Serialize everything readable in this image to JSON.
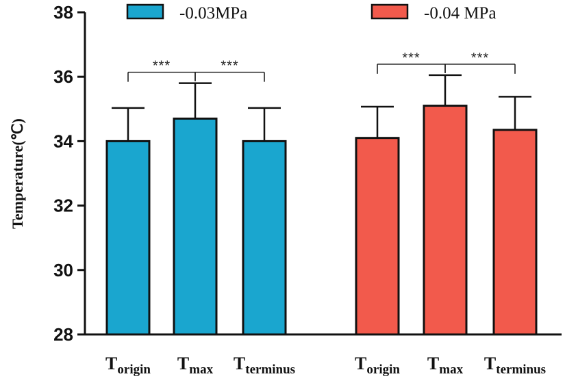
{
  "chart_data": {
    "type": "bar",
    "title": "",
    "xlabel": "",
    "ylabel": "Temperature(℃)",
    "ylim": [
      28,
      38
    ],
    "yticks": [
      "28",
      "30",
      "32",
      "34",
      "36",
      "38"
    ],
    "legend_position": "top",
    "categories": [
      {
        "main": "T",
        "sub": "origin"
      },
      {
        "main": "T",
        "sub": "max"
      },
      {
        "main": "T",
        "sub": "terminus"
      }
    ],
    "series": [
      {
        "name": "-0.03MPa",
        "color": "#1aa6cf",
        "values": [
          34.0,
          34.7,
          34.0
        ],
        "errors": [
          1.03,
          1.1,
          1.03
        ],
        "significance": [
          {
            "from": 0,
            "to": 1,
            "label": "***"
          },
          {
            "from": 1,
            "to": 2,
            "label": "***"
          }
        ]
      },
      {
        "name": "-0.04 MPa",
        "color": "#f25a4c",
        "values": [
          34.1,
          35.1,
          34.35
        ],
        "errors": [
          0.97,
          0.95,
          1.03
        ],
        "significance": [
          {
            "from": 0,
            "to": 1,
            "label": "***"
          },
          {
            "from": 1,
            "to": 2,
            "label": "***"
          }
        ]
      }
    ]
  }
}
